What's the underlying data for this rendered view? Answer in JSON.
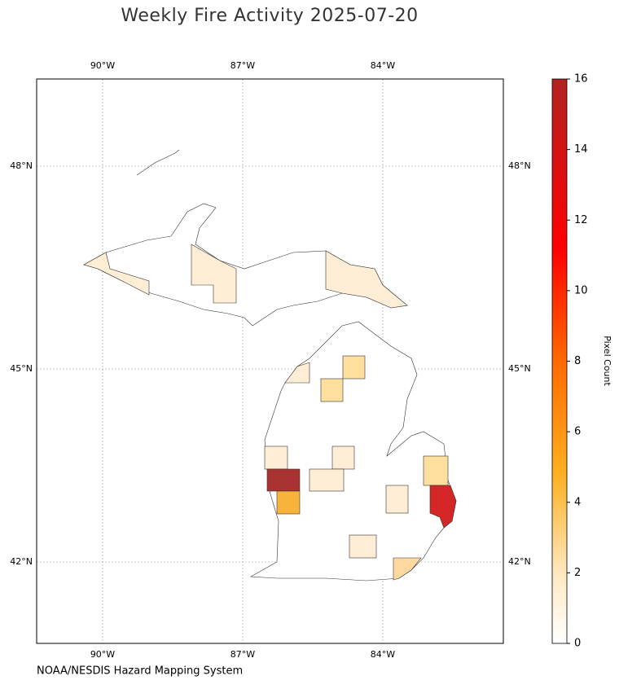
{
  "map": {
    "title": "Weekly Fire Activity 2025-07-20",
    "lon_ticks": [
      {
        "value": -90,
        "label": "90°W"
      },
      {
        "value": -87,
        "label": "87°W"
      },
      {
        "value": -84,
        "label": "84°W"
      }
    ],
    "lat_ticks": [
      {
        "value": 48,
        "label": "48°N"
      },
      {
        "value": 45,
        "label": "45°N"
      },
      {
        "value": 42,
        "label": "42°N"
      }
    ],
    "colorbar": {
      "label": "Pixel Count",
      "lim": [
        0,
        16
      ],
      "ticks": [
        0,
        2,
        4,
        6,
        8,
        10,
        12,
        14,
        16
      ]
    },
    "credit": "NOAA/NESDIS Hazard Mapping System"
  }
}
